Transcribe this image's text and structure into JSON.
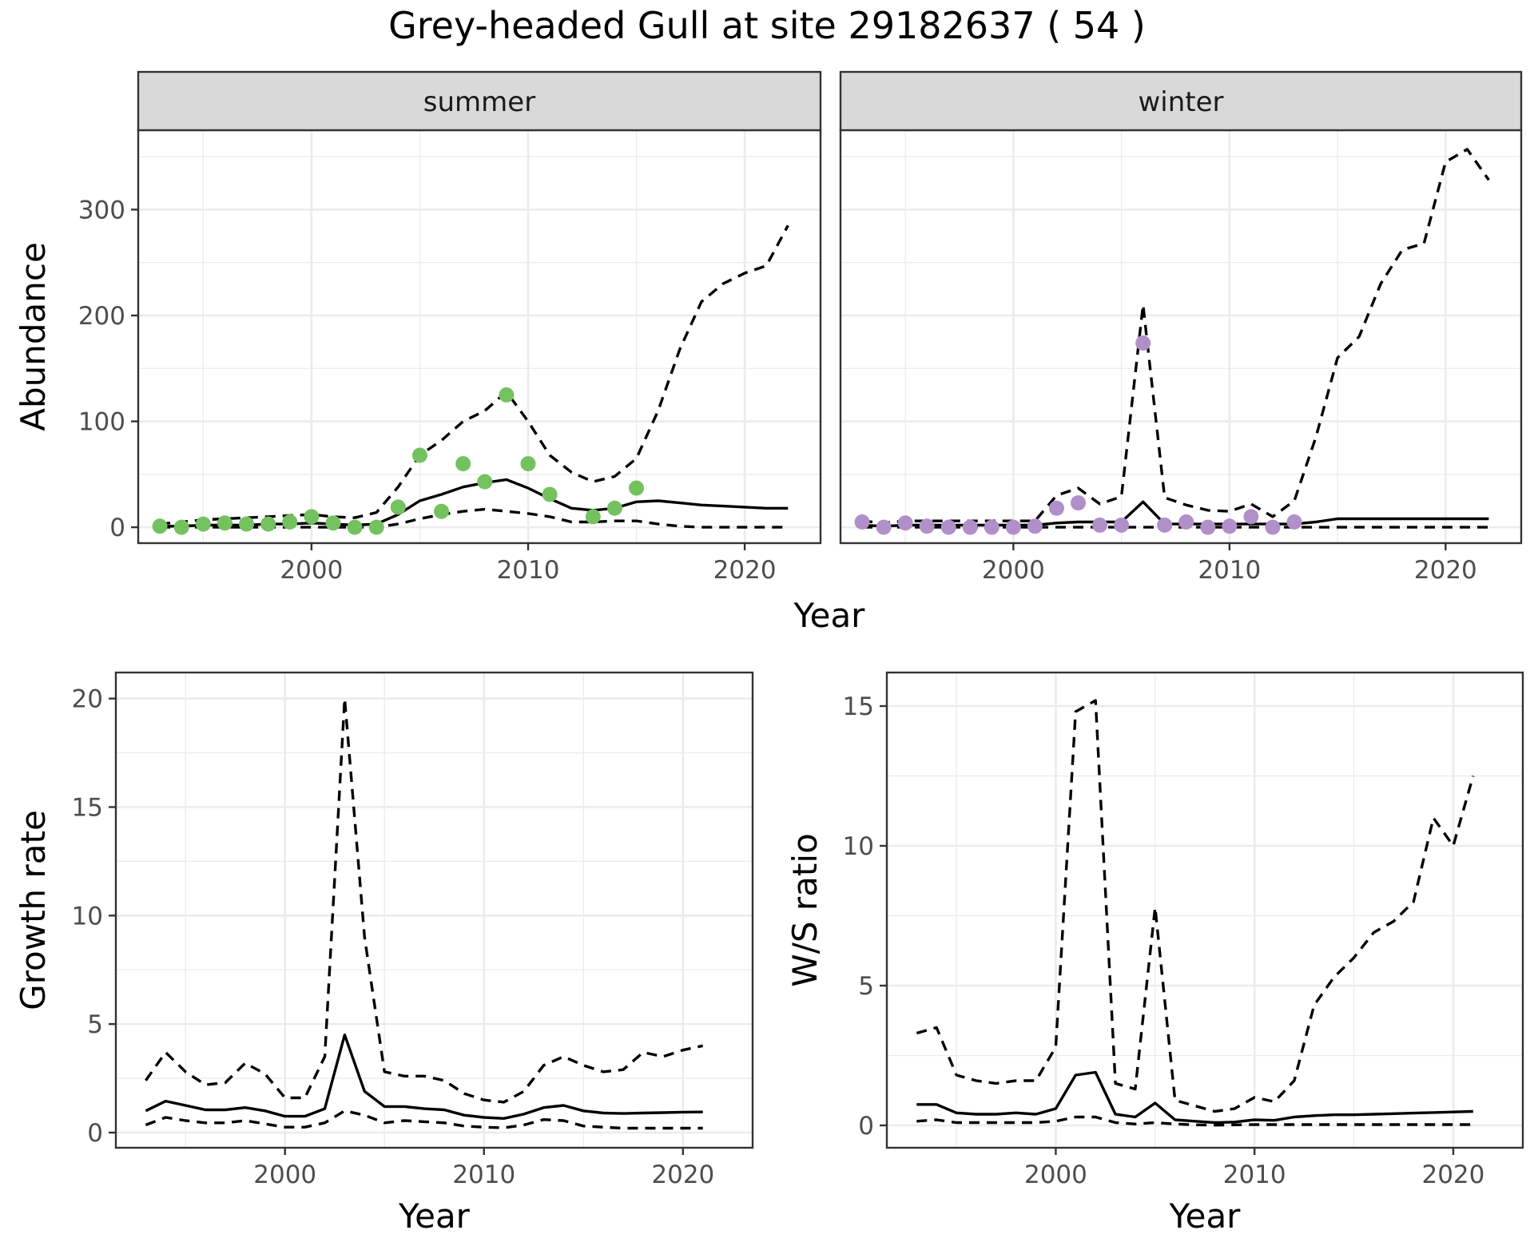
{
  "title": "Grey-headed Gull at site 29182637 ( 54 )",
  "colors": {
    "summer_points": "#74c160",
    "winter_points": "#b18fc9",
    "lines": "#000000"
  },
  "chart_data": [
    {
      "id": "abundance",
      "type": "line",
      "panels": [
        "summer",
        "winter"
      ],
      "xlabel": "Year",
      "ylabel": "Abundance",
      "xlim": [
        1992,
        2023.5
      ],
      "ylim": [
        -15,
        375
      ],
      "xticks": [
        2000,
        2010,
        2020
      ],
      "yticks": [
        0,
        100,
        200,
        300
      ],
      "grid": true,
      "x": [
        1993,
        1994,
        1995,
        1996,
        1997,
        1998,
        1999,
        2000,
        2001,
        2002,
        2003,
        2004,
        2005,
        2006,
        2007,
        2008,
        2009,
        2010,
        2011,
        2012,
        2013,
        2014,
        2015,
        2016,
        2017,
        2018,
        2019,
        2020,
        2021,
        2022
      ],
      "summer": {
        "mean": [
          1,
          1,
          2,
          2,
          2,
          3,
          3,
          4,
          3,
          2,
          3,
          12,
          25,
          31,
          38,
          42,
          45,
          37,
          27,
          18,
          16,
          18,
          24,
          25,
          23,
          21,
          20,
          19,
          18,
          18
        ],
        "lower": [
          0,
          0,
          0,
          0,
          0,
          0,
          0,
          0,
          0,
          0,
          0,
          3,
          8,
          12,
          15,
          17,
          15,
          13,
          10,
          5,
          5,
          6,
          6,
          3,
          1,
          0,
          0,
          0,
          0,
          0
        ],
        "upper": [
          3,
          5,
          7,
          8,
          9,
          10,
          11,
          12,
          10,
          9,
          14,
          38,
          68,
          82,
          100,
          110,
          128,
          100,
          68,
          52,
          43,
          48,
          65,
          110,
          168,
          213,
          230,
          240,
          247,
          285
        ],
        "observed_x": [
          1993,
          1994,
          1995,
          1996,
          1997,
          1998,
          1999,
          2000,
          2001,
          2002,
          2003,
          2004,
          2005,
          2006,
          2007,
          2008,
          2009,
          2010,
          2011,
          2013,
          2014,
          2015
        ],
        "observed_y": [
          1,
          0,
          3,
          4,
          3,
          3,
          5,
          10,
          4,
          0,
          0,
          19,
          68,
          15,
          60,
          43,
          125,
          60,
          31,
          10,
          18,
          37
        ]
      },
      "winter": {
        "mean": [
          2,
          1,
          2,
          2,
          2,
          2,
          2,
          2,
          2,
          4,
          5,
          5,
          5,
          24,
          3,
          3,
          3,
          3,
          3,
          3,
          3,
          5,
          8,
          8,
          8,
          8,
          8,
          8,
          8,
          8
        ],
        "lower": [
          0,
          0,
          0,
          0,
          0,
          0,
          0,
          0,
          0,
          0,
          0,
          0,
          0,
          0,
          0,
          0,
          0,
          0,
          0,
          0,
          0,
          0,
          0,
          0,
          0,
          0,
          0,
          0,
          0,
          0
        ],
        "upper": [
          6,
          4,
          6,
          6,
          6,
          6,
          6,
          6,
          6,
          30,
          37,
          22,
          29,
          210,
          28,
          21,
          16,
          15,
          22,
          10,
          25,
          85,
          160,
          180,
          230,
          262,
          268,
          345,
          357,
          328
        ],
        "observed_x": [
          1993,
          1994,
          1995,
          1996,
          1997,
          1998,
          1999,
          2000,
          2001,
          2002,
          2003,
          2004,
          2005,
          2006,
          2007,
          2008,
          2009,
          2010,
          2011,
          2012,
          2013
        ],
        "observed_y": [
          5,
          0,
          4,
          1,
          0,
          0,
          0,
          0,
          1,
          18,
          23,
          2,
          2,
          174,
          2,
          5,
          0,
          1,
          10,
          0,
          5
        ]
      }
    },
    {
      "id": "growth",
      "type": "line",
      "xlabel": "Year",
      "ylabel": "Growth rate",
      "xlim": [
        1991.5,
        2023.5
      ],
      "ylim": [
        -0.7,
        21.2
      ],
      "xticks": [
        2000,
        2010,
        2020
      ],
      "yticks": [
        0,
        5,
        10,
        15,
        20
      ],
      "grid": true,
      "x": [
        1993,
        1994,
        1995,
        1996,
        1997,
        1998,
        1999,
        2000,
        2001,
        2002,
        2003,
        2004,
        2005,
        2006,
        2007,
        2008,
        2009,
        2010,
        2011,
        2012,
        2013,
        2014,
        2015,
        2016,
        2017,
        2018,
        2019,
        2020,
        2021
      ],
      "mean": [
        1.0,
        1.45,
        1.25,
        1.05,
        1.05,
        1.15,
        1.0,
        0.75,
        0.75,
        1.1,
        4.5,
        1.9,
        1.2,
        1.2,
        1.1,
        1.05,
        0.8,
        0.7,
        0.65,
        0.85,
        1.15,
        1.25,
        1.0,
        0.9,
        0.88,
        0.9,
        0.92,
        0.94,
        0.95
      ],
      "lower": [
        0.35,
        0.7,
        0.55,
        0.45,
        0.45,
        0.55,
        0.4,
        0.25,
        0.25,
        0.45,
        1.0,
        0.8,
        0.45,
        0.55,
        0.5,
        0.45,
        0.3,
        0.25,
        0.22,
        0.35,
        0.6,
        0.55,
        0.3,
        0.25,
        0.2,
        0.2,
        0.2,
        0.2,
        0.2
      ],
      "upper": [
        2.4,
        3.7,
        2.8,
        2.2,
        2.3,
        3.2,
        2.7,
        1.6,
        1.6,
        3.5,
        20.0,
        9.0,
        2.8,
        2.6,
        2.6,
        2.4,
        1.8,
        1.5,
        1.4,
        1.9,
        3.1,
        3.5,
        3.1,
        2.8,
        2.9,
        3.7,
        3.5,
        3.8,
        4.0
      ]
    },
    {
      "id": "ws_ratio",
      "type": "line",
      "xlabel": "Year",
      "ylabel": "W/S ratio",
      "xlim": [
        1991.5,
        2023.5
      ],
      "ylim": [
        -0.8,
        16.2
      ],
      "xticks": [
        2000,
        2010,
        2020
      ],
      "yticks": [
        0,
        5,
        10,
        15
      ],
      "grid": true,
      "x": [
        1993,
        1994,
        1995,
        1996,
        1997,
        1998,
        1999,
        2000,
        2001,
        2002,
        2003,
        2004,
        2005,
        2006,
        2007,
        2008,
        2009,
        2010,
        2011,
        2012,
        2013,
        2014,
        2015,
        2016,
        2017,
        2018,
        2019,
        2020,
        2021
      ],
      "mean": [
        0.75,
        0.75,
        0.45,
        0.4,
        0.4,
        0.45,
        0.4,
        0.6,
        1.8,
        1.9,
        0.4,
        0.3,
        0.8,
        0.2,
        0.15,
        0.1,
        0.12,
        0.2,
        0.18,
        0.3,
        0.35,
        0.38,
        0.38,
        0.4,
        0.42,
        0.44,
        0.46,
        0.48,
        0.5
      ],
      "lower": [
        0.15,
        0.2,
        0.1,
        0.1,
        0.1,
        0.1,
        0.1,
        0.15,
        0.3,
        0.3,
        0.1,
        0.05,
        0.1,
        0.05,
        0.02,
        0.01,
        0.02,
        0.03,
        0.03,
        0.03,
        0.03,
        0.03,
        0.03,
        0.03,
        0.03,
        0.03,
        0.03,
        0.03,
        0.03
      ],
      "upper": [
        3.3,
        3.5,
        1.8,
        1.6,
        1.5,
        1.6,
        1.6,
        2.8,
        14.8,
        15.2,
        1.5,
        1.3,
        7.8,
        0.9,
        0.7,
        0.5,
        0.6,
        1.0,
        0.85,
        1.6,
        4.3,
        5.3,
        6.0,
        6.9,
        7.3,
        8.0,
        11.0,
        10.0,
        12.5
      ]
    }
  ]
}
